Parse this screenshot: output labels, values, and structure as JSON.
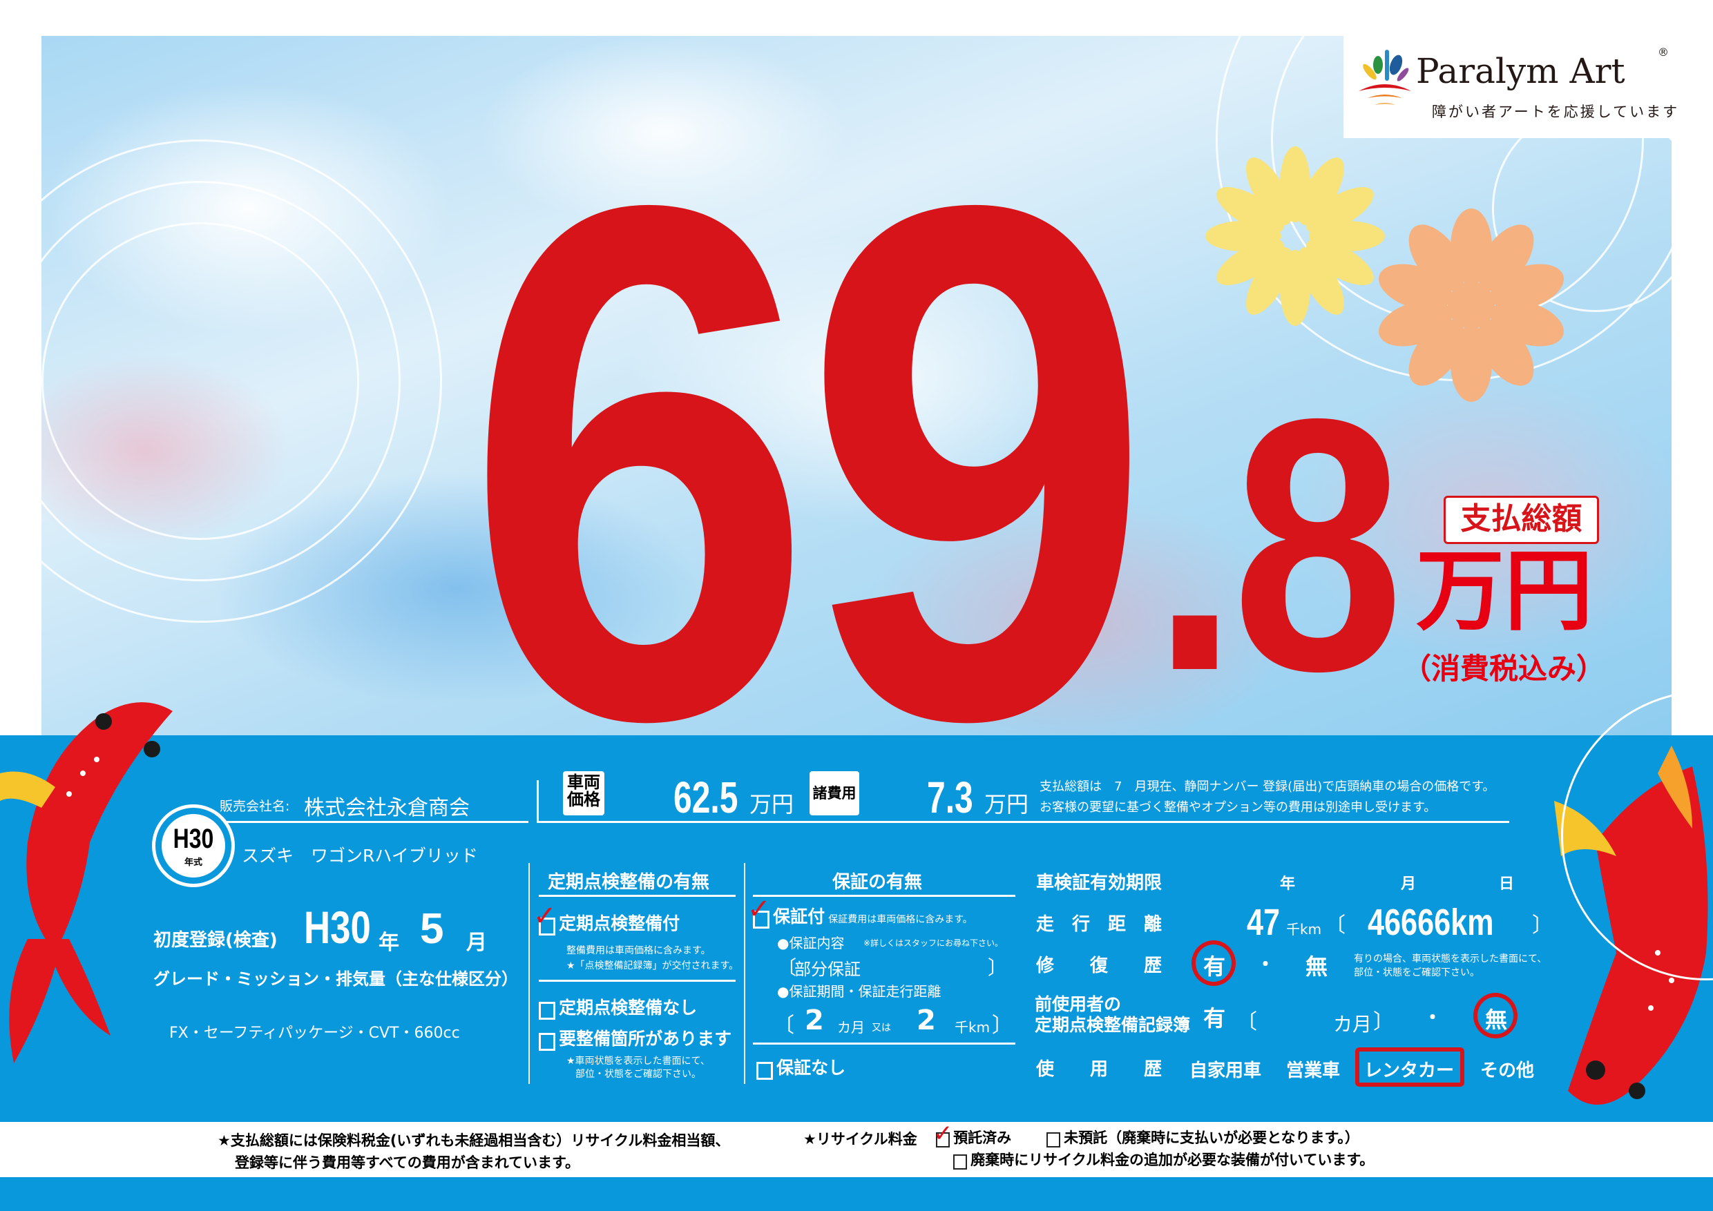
{
  "logo": {
    "name": "Paralym Art",
    "reg": "®",
    "tagline": "障がい者アートを応援しています"
  },
  "price": {
    "integer": "69",
    "decimal": ".8",
    "label": "支払総額",
    "unit": "万円",
    "tax_note": "（消費税込み）",
    "color": "#d7141a"
  },
  "dealer": {
    "label": "販売会社名:",
    "name": "株式会社永倉商会"
  },
  "model_year": {
    "value": "H30",
    "label": "年式"
  },
  "car_name": "スズキ　ワゴンRハイブリッド",
  "first_registration": {
    "label": "初度登録(検査)",
    "era_year": "H30",
    "year_unit": "年",
    "month": "5",
    "month_unit": "月"
  },
  "grade_label": "グレード・ミッション・排気量（主な仕様区分）",
  "grade_value": "FX・セーフティパッケージ・CVT・660cc",
  "vehicle_price": {
    "label": "車両価格",
    "value": "62.5",
    "unit": "万円"
  },
  "fees": {
    "label": "諸費用",
    "value": "7.3",
    "unit": "万円"
  },
  "notes": [
    "支払総額は　7　月現在、静岡ナンバー 登録(届出)で店頭納車の場合の価格です。",
    "お客様の要望に基づく整備やオプション等の費用は別途申し受けます。"
  ],
  "inspection": {
    "header": "定期点検整備の有無",
    "options": [
      {
        "label": "定期点検整備付",
        "checked": true
      },
      {
        "label": "定期点検整備なし",
        "checked": false
      },
      {
        "label": "要整備箇所があります",
        "checked": false
      }
    ],
    "with_notes": [
      "整備費用は車両価格に含みます。",
      "★「点検整備記録簿」が交付されます。"
    ],
    "repair_notes": [
      "★車両状態を表示した書面にて、",
      "部位・状態をご確認下さい。"
    ]
  },
  "warranty": {
    "header": "保証の有無",
    "with_label": "保証付",
    "with_note": "保証費用は車両価格に含みます。",
    "checked": true,
    "content_label": "●保証内容",
    "content_note": "※詳しくはスタッフにお尋ね下さい。",
    "content_value": "部分保証",
    "period_label": "●保証期間・保証走行距離",
    "months": "2",
    "months_unit": "カ月",
    "or": "又は",
    "km": "2",
    "km_unit": "千km",
    "none_label": "保証なし"
  },
  "shaken": {
    "label": "車検証有効期限",
    "year": "年",
    "month": "月",
    "day": "日"
  },
  "mileage": {
    "label": "走　行　距　離",
    "value": "47",
    "unit": "千km",
    "exact": "46666km"
  },
  "repair_history": {
    "label": "修　　復　　歴",
    "yes": "有",
    "dot": "・",
    "no": "無",
    "selected": "有",
    "note": [
      "有りの場合、車両状態を表示した書面にて、",
      "部位・状態をご確認下さい。"
    ]
  },
  "prev_record": {
    "label": [
      "前使用者の",
      "定期点検整備記録簿"
    ],
    "yes": "有",
    "months_unit": "カ月",
    "dot": "・",
    "no": "無",
    "selected": "無"
  },
  "usage": {
    "label": "使　　用　　歴",
    "options": [
      "自家用車",
      "営業車",
      "レンタカー",
      "その他"
    ],
    "selected": "レンタカー"
  },
  "footer": {
    "total_note": [
      "★支払総額には保険料税金(いずれも未経過相当含む）リサイクル料金相当額、",
      "登録等に伴う費用等すべての費用が含まれています。"
    ],
    "recycle_label": "★リサイクル料金",
    "deposited": "預託済み",
    "deposited_checked": true,
    "not_deposited": "未預託（廃棄時に支払いが必要となります。）",
    "extra": "廃棄時にリサイクル料金の追加が必要な装備が付いています。"
  }
}
